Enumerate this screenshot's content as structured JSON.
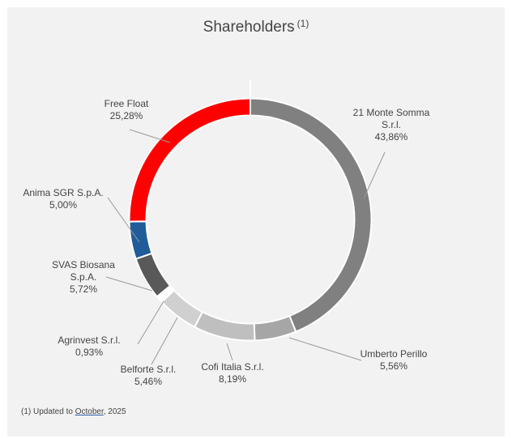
{
  "title": "Shareholders",
  "title_note": "(1)",
  "footnote": {
    "prefix": "(1) Updated to ",
    "link": "October",
    "suffix": ", 2025"
  },
  "chart_data": {
    "type": "pie",
    "style": "donut",
    "title": "Shareholders",
    "legend": "none",
    "slices": [
      {
        "name": "21 Monte Somma S.r.l.",
        "lines": [
          "21 Monte Somma",
          "S.r.l."
        ],
        "value": 43.86,
        "label": "43,86%",
        "color": "#808080"
      },
      {
        "name": "Umberto Perillo",
        "lines": [
          "Umberto Perillo"
        ],
        "value": 5.56,
        "label": "5,56%",
        "color": "#a6a6a6"
      },
      {
        "name": "Cofi Italia S.r.l.",
        "lines": [
          "Cofi Italia S.r.l."
        ],
        "value": 8.19,
        "label": "8,19%",
        "color": "#bfbfbf"
      },
      {
        "name": "Belforte S.r.l.",
        "lines": [
          "Belforte S.r.l."
        ],
        "value": 5.46,
        "label": "5,46%",
        "color": "#d0d0d0"
      },
      {
        "name": "Agrinvest S.r.l.",
        "lines": [
          "Agrinvest S.r.l."
        ],
        "value": 0.93,
        "label": "0,93%",
        "color": "#ffffff"
      },
      {
        "name": "SVAS Biosana S.p.A.",
        "lines": [
          "SVAS Biosana",
          "S.p.A."
        ],
        "value": 5.72,
        "label": "5,72%",
        "color": "#595959"
      },
      {
        "name": "Anima SGR S.p.A.",
        "lines": [
          "Anima SGR S.p.A."
        ],
        "value": 5.0,
        "label": "5,00%",
        "color": "#1f5c99"
      },
      {
        "name": "Free Float",
        "lines": [
          "Free Float"
        ],
        "value": 25.28,
        "label": "25,28%",
        "color": "#ff0000"
      }
    ]
  }
}
